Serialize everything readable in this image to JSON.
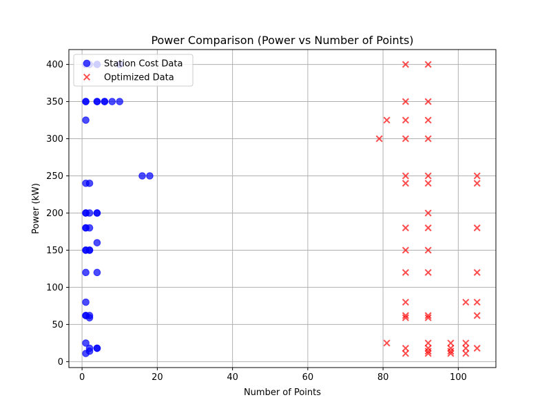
{
  "chart_data": {
    "type": "scatter",
    "title": "Power Comparison (Power vs Number of Points)",
    "xlabel": "Number of Points",
    "ylabel": "Power (kW)",
    "xlim": [
      -3.5,
      110
    ],
    "ylim": [
      -8,
      420
    ],
    "xticks": [
      0,
      20,
      40,
      60,
      80,
      100
    ],
    "yticks": [
      0,
      50,
      100,
      150,
      200,
      250,
      300,
      350,
      400
    ],
    "grid": true,
    "legend_position": "top-left",
    "series": [
      {
        "name": "Station Cost Data",
        "marker": "circle",
        "color": "#0000ff",
        "points": [
          [
            1,
            400
          ],
          [
            2,
            400
          ],
          [
            4,
            400
          ],
          [
            4,
            400
          ],
          [
            10,
            400
          ],
          [
            1,
            350
          ],
          [
            1,
            350
          ],
          [
            4,
            350
          ],
          [
            4,
            350
          ],
          [
            6,
            350
          ],
          [
            6,
            350
          ],
          [
            8,
            350
          ],
          [
            10,
            350
          ],
          [
            1,
            325
          ],
          [
            16,
            250
          ],
          [
            18,
            250
          ],
          [
            1,
            240
          ],
          [
            2,
            240
          ],
          [
            1,
            200
          ],
          [
            1,
            200
          ],
          [
            2,
            200
          ],
          [
            4,
            200
          ],
          [
            4,
            200
          ],
          [
            1,
            180
          ],
          [
            1,
            180
          ],
          [
            2,
            180
          ],
          [
            4,
            160
          ],
          [
            1,
            150
          ],
          [
            1,
            150
          ],
          [
            2,
            150
          ],
          [
            2,
            150
          ],
          [
            1,
            120
          ],
          [
            4,
            120
          ],
          [
            1,
            80
          ],
          [
            1,
            62
          ],
          [
            1,
            62
          ],
          [
            2,
            62
          ],
          [
            2,
            59
          ],
          [
            1,
            25
          ],
          [
            2,
            18
          ],
          [
            4,
            18
          ],
          [
            4,
            18
          ],
          [
            2,
            14
          ],
          [
            1,
            11
          ]
        ]
      },
      {
        "name": "Optimized Data",
        "marker": "x",
        "color": "#ff0000",
        "points": [
          [
            86,
            400
          ],
          [
            92,
            400
          ],
          [
            86,
            350
          ],
          [
            92,
            350
          ],
          [
            81,
            325
          ],
          [
            86,
            325
          ],
          [
            92,
            325
          ],
          [
            79,
            300
          ],
          [
            86,
            300
          ],
          [
            92,
            300
          ],
          [
            86,
            250
          ],
          [
            92,
            250
          ],
          [
            105,
            250
          ],
          [
            86,
            240
          ],
          [
            92,
            240
          ],
          [
            105,
            240
          ],
          [
            92,
            200
          ],
          [
            86,
            180
          ],
          [
            92,
            180
          ],
          [
            105,
            180
          ],
          [
            86,
            150
          ],
          [
            92,
            150
          ],
          [
            86,
            120
          ],
          [
            92,
            120
          ],
          [
            105,
            120
          ],
          [
            86,
            80
          ],
          [
            102,
            80
          ],
          [
            105,
            80
          ],
          [
            86,
            62
          ],
          [
            92,
            62
          ],
          [
            105,
            62
          ],
          [
            86,
            59
          ],
          [
            92,
            59
          ],
          [
            81,
            25
          ],
          [
            92,
            25
          ],
          [
            98,
            25
          ],
          [
            102,
            25
          ],
          [
            86,
            18
          ],
          [
            92,
            18
          ],
          [
            98,
            18
          ],
          [
            102,
            18
          ],
          [
            105,
            18
          ],
          [
            92,
            14
          ],
          [
            98,
            14
          ],
          [
            86,
            11
          ],
          [
            92,
            11
          ],
          [
            98,
            11
          ],
          [
            102,
            11
          ]
        ]
      }
    ]
  }
}
